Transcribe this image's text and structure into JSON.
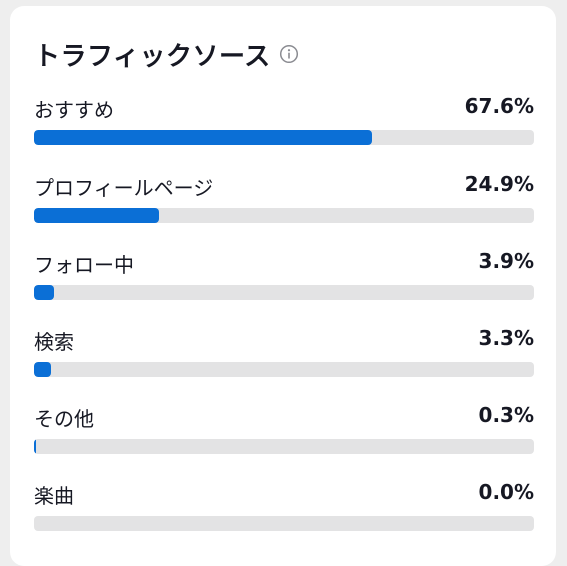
{
  "card": {
    "title": "トラフィックソース",
    "info_icon": "info-circle-icon"
  },
  "colors": {
    "bar_fill": "#0b6fd6",
    "bar_track": "#e3e3e4",
    "text": "#161823"
  },
  "sources": [
    {
      "label": "おすすめ",
      "value": "67.6%",
      "percent": 67.6
    },
    {
      "label": "プロフィールページ",
      "value": "24.9%",
      "percent": 24.9
    },
    {
      "label": "フォロー中",
      "value": "3.9%",
      "percent": 3.9
    },
    {
      "label": "検索",
      "value": "3.3%",
      "percent": 3.3
    },
    {
      "label": "その他",
      "value": "0.3%",
      "percent": 0.3
    },
    {
      "label": "楽曲",
      "value": "0.0%",
      "percent": 0.0
    }
  ]
}
